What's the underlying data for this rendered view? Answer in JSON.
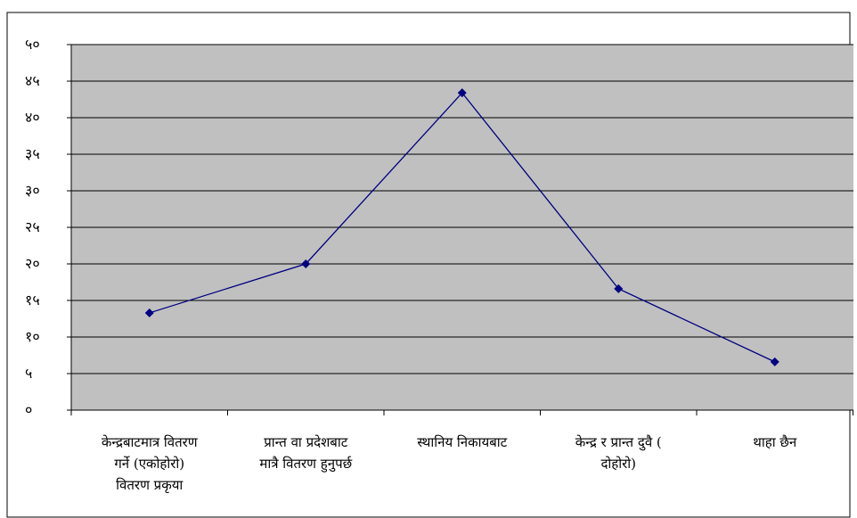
{
  "colors": {
    "plot_bg": "#c0c0c0",
    "grid": "#000000",
    "series": "#000080",
    "border": "#000000"
  },
  "chart_data": {
    "type": "line",
    "title": "",
    "xlabel": "",
    "ylabel": "",
    "ylim": [
      0,
      50
    ],
    "yticks": [
      0,
      5,
      10,
      15,
      20,
      25,
      30,
      35,
      40,
      45,
      50
    ],
    "yticks_labels": [
      "०",
      "५",
      "१०",
      "१५",
      "२०",
      "२५",
      "३०",
      "३५",
      "४०",
      "४५",
      "५०"
    ],
    "grid": true,
    "legend": "none",
    "categories": [
      "केन्द्रबाटमात्र वितरण गर्ने (एकोहोरो) वितरण प्रकृया",
      "प्रान्त वा प्रदेशबाट मात्रै वितरण हुनुपर्छ",
      "स्थानिय निकायबाट",
      "केन्द्र र प्रान्त दुवै ( दोहोरो)",
      "थाहा छैन"
    ],
    "category_lines": [
      [
        "केन्द्रबाटमात्र वितरण",
        "गर्ने (एकोहोरो)",
        "वितरण प्रकृया"
      ],
      [
        "प्रान्त वा प्रदेशबाट",
        "मात्रै वितरण हुनुपर्छ"
      ],
      [
        "स्थानिय निकायबाट"
      ],
      [
        "केन्द्र र प्रान्त दुवै (",
        "दोहोरो)"
      ],
      [
        "थाहा छैन"
      ]
    ],
    "series": [
      {
        "values": [
          13.3,
          20.0,
          43.4,
          16.6,
          6.6
        ]
      }
    ]
  }
}
